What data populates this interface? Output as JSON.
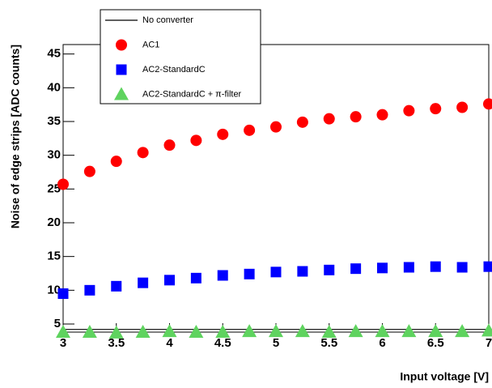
{
  "chart_data": {
    "type": "scatter",
    "x_label": "Input voltage [V]",
    "y_label": "Noise of edge strips [ADC counts]",
    "x": [
      3,
      3.25,
      3.5,
      3.75,
      4,
      4.25,
      4.5,
      4.75,
      5,
      5.25,
      5.5,
      5.75,
      6,
      6.25,
      6.5,
      6.75,
      7
    ],
    "series": [
      {
        "name": "No converter",
        "color": "#000000",
        "marker": "line",
        "values": [
          4.2,
          4.2,
          4.2,
          4.2,
          4.2,
          4.2,
          4.2,
          4.2,
          4.2,
          4.2,
          4.2,
          4.2,
          4.2,
          4.2,
          4.2,
          4.2,
          4.2
        ]
      },
      {
        "name": "AC1",
        "color": "#ff0000",
        "marker": "circle",
        "values": [
          25.7,
          27.6,
          29.1,
          30.4,
          31.5,
          32.2,
          33.1,
          33.7,
          34.2,
          34.9,
          35.4,
          35.7,
          36.0,
          36.6,
          36.9,
          37.1,
          37.6
        ]
      },
      {
        "name": "AC2-StandardC",
        "color": "#0000ff",
        "marker": "square",
        "values": [
          9.5,
          10.0,
          10.6,
          11.1,
          11.5,
          11.8,
          12.2,
          12.4,
          12.7,
          12.8,
          13.0,
          13.2,
          13.3,
          13.4,
          13.5,
          13.4,
          13.5
        ]
      },
      {
        "name": "AC2-StandardC + π-filter",
        "color": "#5fd35f",
        "marker": "triangle",
        "values": [
          3.8,
          3.8,
          3.7,
          3.8,
          3.9,
          3.8,
          3.8,
          3.9,
          3.9,
          3.9,
          3.8,
          3.9,
          3.9,
          3.9,
          3.9,
          3.9,
          4.0
        ]
      }
    ],
    "xlim": [
      3,
      7
    ],
    "ylim": [
      3.8,
      46.4
    ],
    "xticks": [
      3,
      3.5,
      4,
      4.5,
      5,
      5.5,
      6,
      6.5,
      7
    ],
    "yticks": [
      5,
      10,
      15,
      20,
      25,
      30,
      35,
      40,
      45
    ]
  }
}
